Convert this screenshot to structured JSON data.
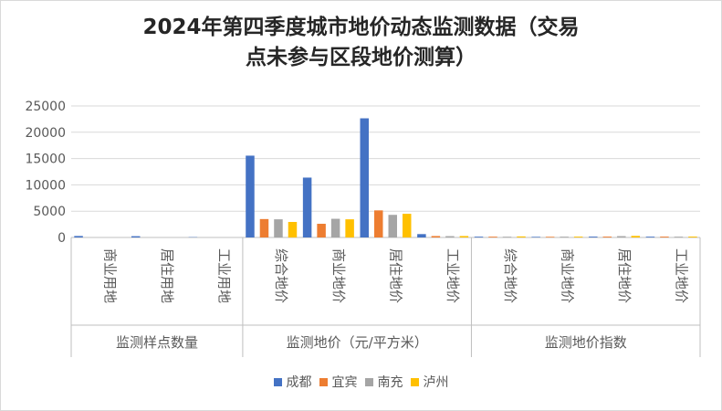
{
  "chart_data": {
    "type": "bar",
    "title_line1": "2024年第四季度城市地价动态监测数据（交易",
    "title_line2": "点未参与区段地价测算）",
    "groups": [
      {
        "name": "监测样点数量",
        "categories": [
          "商业用地",
          "居住用地",
          "工业用地"
        ]
      },
      {
        "name": "监测地价（元/平方米）",
        "categories": [
          "综合地价",
          "商业地价",
          "居住地价",
          "工业地价"
        ]
      },
      {
        "name": "监测地价指数",
        "categories": [
          "综合地价",
          "商业地价",
          "居住地价",
          "工业地价"
        ]
      }
    ],
    "series": [
      {
        "name": "成都",
        "color": "#4472C4",
        "values": [
          280,
          240,
          60,
          15550,
          11380,
          22650,
          640,
          150,
          120,
          160,
          150
        ]
      },
      {
        "name": "宜宾",
        "color": "#ED7D31",
        "values": [
          0,
          0,
          0,
          3500,
          2600,
          5150,
          270,
          150,
          130,
          160,
          160
        ]
      },
      {
        "name": "南充",
        "color": "#A5A5A5",
        "values": [
          0,
          0,
          0,
          3450,
          3550,
          4300,
          250,
          140,
          150,
          250,
          150
        ]
      },
      {
        "name": "泸州",
        "color": "#FFC000",
        "values": [
          0,
          0,
          0,
          2950,
          3450,
          4500,
          270,
          200,
          160,
          300,
          170
        ]
      }
    ],
    "yticks": [
      "0",
      "5000",
      "10000",
      "15000",
      "20000",
      "25000"
    ],
    "ylim": [
      0,
      25000
    ],
    "grid": true,
    "legend_position": "bottom"
  }
}
